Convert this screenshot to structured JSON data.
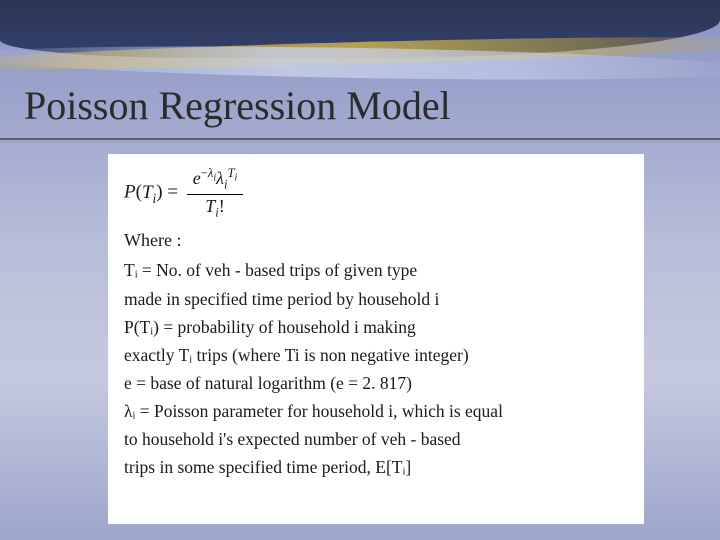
{
  "slide": {
    "title": "Poisson Regression Model",
    "title_fontsize": 40,
    "title_color": "#2b2b2b",
    "background_gradient": [
      "#8a93c4",
      "#b8bdd8",
      "#c5c9de",
      "#9da5cc"
    ],
    "header": {
      "dark_band_color": "#2a3555",
      "gold_wave_color": "#d2b446",
      "light_wave_color": "#c8d2eb"
    },
    "content": {
      "background": "#ffffff",
      "text_color": "#1a1a1a",
      "font_family": "Times New Roman",
      "body_fontsize": 17.5,
      "formula": {
        "lhs": "P(Tᵢ) =",
        "numerator": "e⁻λᵢ λᵢ^Tᵢ",
        "denominator": "Tᵢ!"
      },
      "where_label": "Where :",
      "definitions": [
        "Tᵢ = No. of veh - based trips of given type",
        "made in specified time period by household i",
        "P(Tᵢ) = probability of household i making",
        "exactly Tᵢ trips (where Ti is non negative integer)",
        "e = base of natural logarithm (e = 2. 817)",
        "λᵢ = Poisson parameter for household i, which is equal",
        "to household i's expected number of veh - based",
        "trips in some specified time period, E[Tᵢ]"
      ]
    }
  }
}
